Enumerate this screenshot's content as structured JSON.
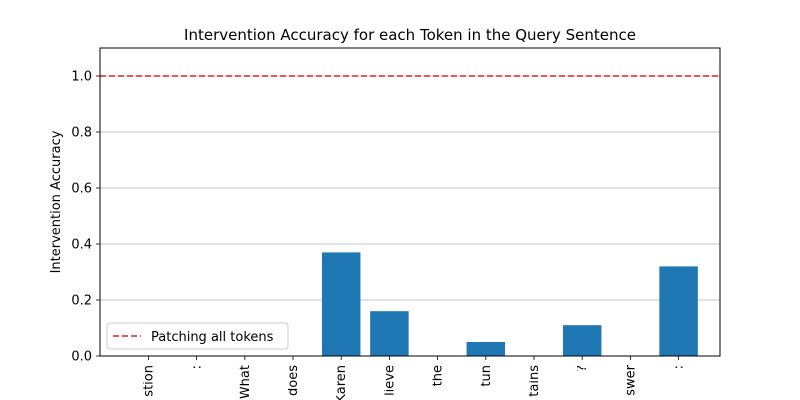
{
  "chart_data": {
    "type": "bar",
    "title": "Intervention Accuracy for each Token in the Query Sentence",
    "xlabel": "",
    "ylabel": "Intervention Accuracy",
    "ylim": [
      0,
      1.1
    ],
    "yticks": [
      0.0,
      0.2,
      0.4,
      0.6,
      0.8,
      1.0
    ],
    "ytick_labels": [
      "0.0",
      "0.2",
      "0.4",
      "0.6",
      "0.8",
      "1.0"
    ],
    "grid": "horizontal",
    "categories": [
      "stion",
      ":",
      "What",
      "does",
      "Karen",
      "lieve",
      "the",
      "tun",
      "tains",
      "?",
      "swer",
      ":"
    ],
    "series": [
      {
        "values": [
          0,
          0,
          0,
          0,
          0.37,
          0.16,
          0,
          0.05,
          0,
          0.11,
          0,
          0.32
        ]
      }
    ],
    "reference_line": {
      "label": "Patching all tokens",
      "value": 1.0
    },
    "legend": "lower-left",
    "colors": {
      "bar": "#1f77b4",
      "reference": "#d62728",
      "grid": "#b0b0b0",
      "axis": "#000000"
    }
  }
}
